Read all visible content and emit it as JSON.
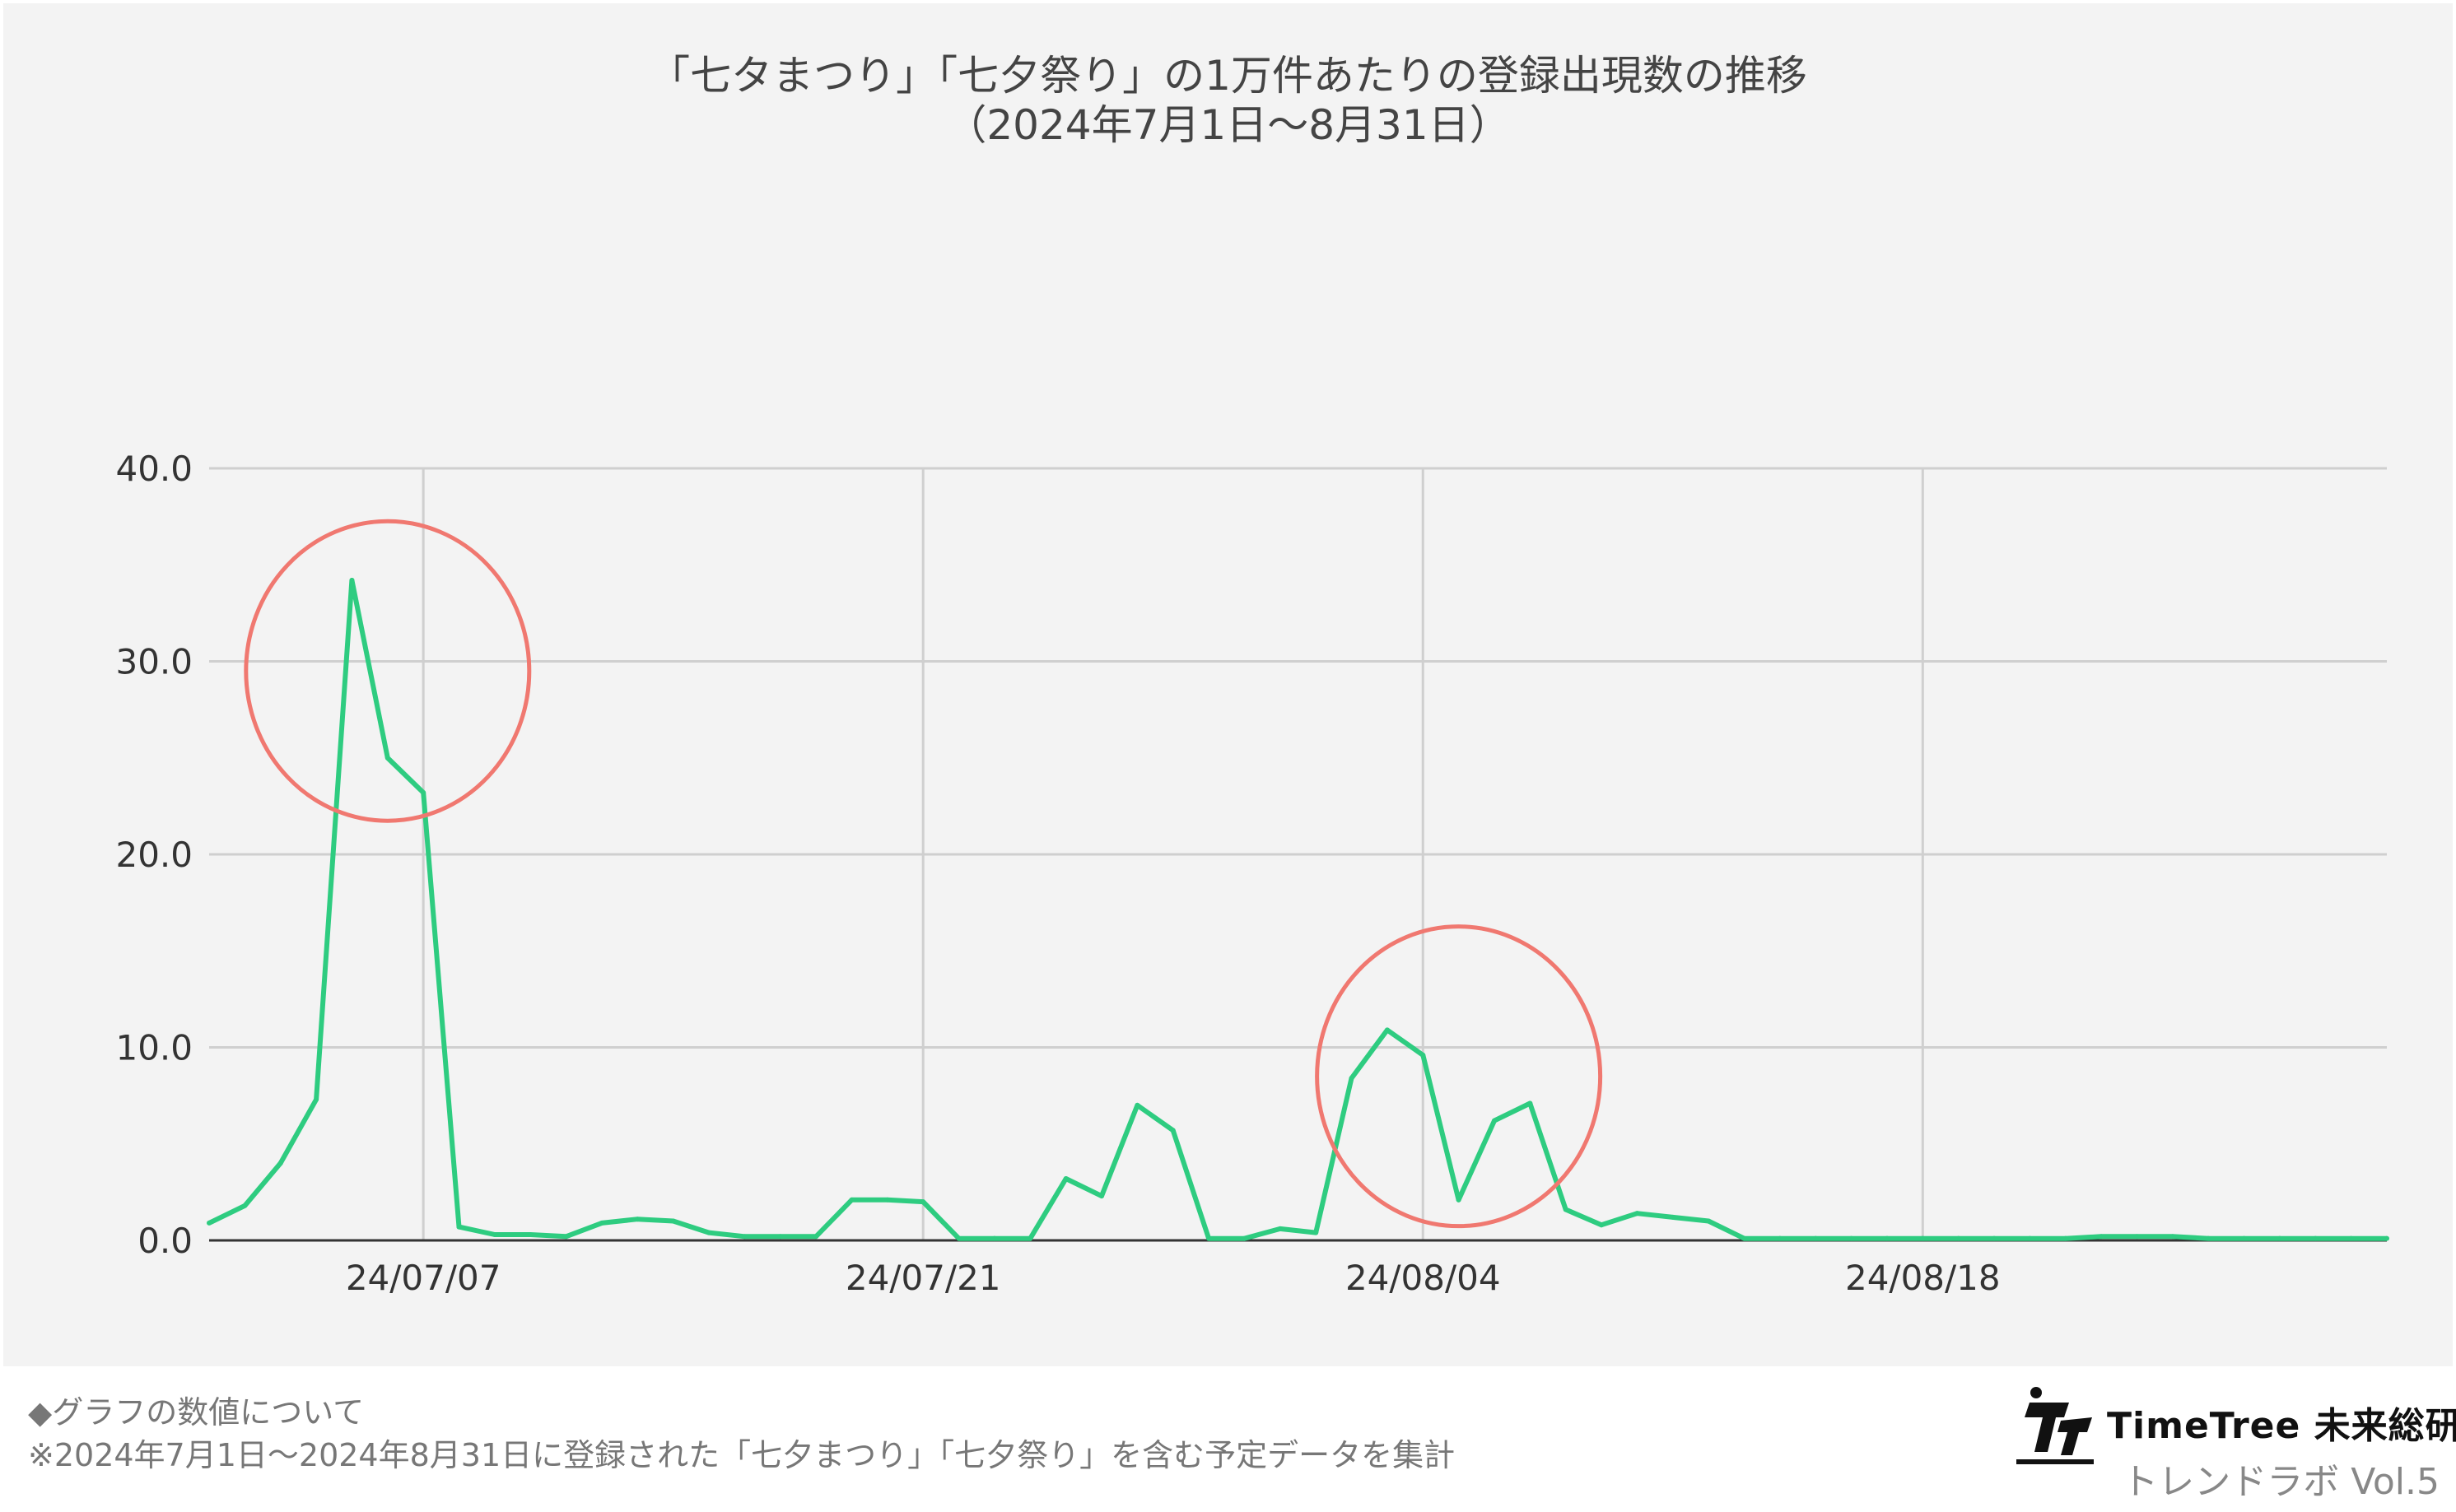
{
  "chart_data": {
    "type": "line",
    "title_line1": "「七タまつり」「七夕祭り」の1万件あたりの登録出現数の推移",
    "title_line2": "（2024年7月1日〜8月31日）",
    "x_start": "2024-07-01",
    "x_end": "2024-08-31",
    "x_tick_labels": [
      "24/07/07",
      "24/07/21",
      "24/08/04",
      "24/08/18"
    ],
    "x_ticks": [
      "2024-07-07",
      "2024-07-21",
      "2024-08-04",
      "2024-08-18"
    ],
    "y_tick_labels": [
      "40.0",
      "30.0",
      "20.0",
      "10.0",
      "0.0"
    ],
    "ylim": [
      0,
      40
    ],
    "grid": true,
    "series_color": "#2ecc80",
    "highlight_color": "#f07870",
    "highlights": [
      {
        "center_date": "2024-07-06",
        "center_value": 29.5
      },
      {
        "center_date": "2024-08-05",
        "center_value": 8.5
      }
    ],
    "x": [
      "2024-07-01",
      "2024-07-02",
      "2024-07-03",
      "2024-07-04",
      "2024-07-05",
      "2024-07-06",
      "2024-07-07",
      "2024-07-08",
      "2024-07-09",
      "2024-07-10",
      "2024-07-11",
      "2024-07-12",
      "2024-07-13",
      "2024-07-14",
      "2024-07-15",
      "2024-07-16",
      "2024-07-17",
      "2024-07-18",
      "2024-07-19",
      "2024-07-20",
      "2024-07-21",
      "2024-07-22",
      "2024-07-23",
      "2024-07-24",
      "2024-07-25",
      "2024-07-26",
      "2024-07-27",
      "2024-07-28",
      "2024-07-29",
      "2024-07-30",
      "2024-07-31",
      "2024-08-01",
      "2024-08-02",
      "2024-08-03",
      "2024-08-04",
      "2024-08-05",
      "2024-08-06",
      "2024-08-07",
      "2024-08-08",
      "2024-08-09",
      "2024-08-10",
      "2024-08-11",
      "2024-08-12",
      "2024-08-13",
      "2024-08-14",
      "2024-08-15",
      "2024-08-16",
      "2024-08-17",
      "2024-08-18",
      "2024-08-19",
      "2024-08-20",
      "2024-08-21",
      "2024-08-22",
      "2024-08-23",
      "2024-08-24",
      "2024-08-25",
      "2024-08-26",
      "2024-08-27",
      "2024-08-28",
      "2024-08-29",
      "2024-08-30",
      "2024-08-31"
    ],
    "values": [
      0.9,
      1.8,
      4.0,
      7.3,
      34.2,
      25.0,
      23.2,
      0.7,
      0.3,
      0.3,
      0.2,
      0.9,
      1.1,
      1.0,
      0.4,
      0.2,
      0.2,
      0.2,
      2.1,
      2.1,
      2.0,
      0.1,
      0.1,
      0.1,
      3.2,
      2.3,
      7.0,
      5.7,
      0.1,
      0.1,
      0.6,
      0.4,
      8.4,
      10.9,
      9.6,
      2.1,
      6.2,
      7.1,
      1.6,
      0.8,
      1.4,
      1.2,
      1.0,
      0.1,
      0.1,
      0.1,
      0.1,
      0.1,
      0.1,
      0.1,
      0.1,
      0.1,
      0.1,
      0.2,
      0.2,
      0.2,
      0.1,
      0.1,
      0.1,
      0.1,
      0.1,
      0.1
    ]
  },
  "footer": {
    "note_line1": "◆グラフの数値について",
    "note_line2": "※2024年7月1日〜2024年8月31日に登録された「七夕まつり」「七夕祭り」を含む予定データを集計"
  },
  "brand": {
    "name": "TimeTree 未来総研",
    "sub": "トレンドラボ Vol.5"
  }
}
